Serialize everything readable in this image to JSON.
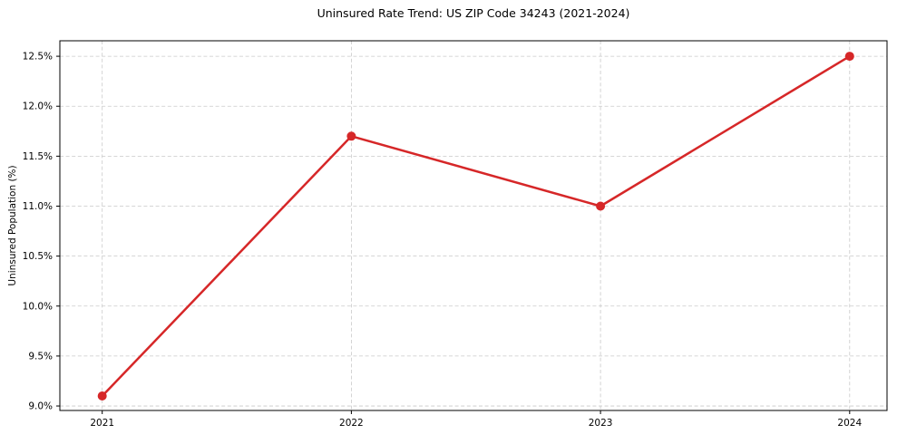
{
  "chart_data": {
    "type": "line",
    "title": "Uninsured Rate Trend: US ZIP Code 34243 (2021-2024)",
    "xlabel": "",
    "ylabel": "Uninsured Population (%)",
    "x": [
      2021,
      2022,
      2023,
      2024
    ],
    "values": [
      9.1,
      11.7,
      11.0,
      12.5
    ],
    "xlim": [
      2020.83,
      2024.15
    ],
    "ylim": [
      8.955,
      12.655
    ],
    "xticks": {
      "values": [
        2021,
        2022,
        2023,
        2024
      ],
      "labels": [
        "2021",
        "2022",
        "2023",
        "2024"
      ]
    },
    "yticks": {
      "values": [
        9.0,
        9.5,
        10.0,
        10.5,
        11.0,
        11.5,
        12.0,
        12.5
      ],
      "labels": [
        "9.0%",
        "9.5%",
        "10.0%",
        "10.5%",
        "11.0%",
        "11.5%",
        "12.0%",
        "12.5%"
      ]
    },
    "grid": "dashed-both-axes",
    "legend": "none",
    "marker": "circle",
    "colors": {
      "line": "#d62728",
      "marker": "#d62728",
      "grid": "#c9c9c9",
      "spine": "#000000",
      "text": "#000000",
      "background": "#ffffff"
    }
  }
}
